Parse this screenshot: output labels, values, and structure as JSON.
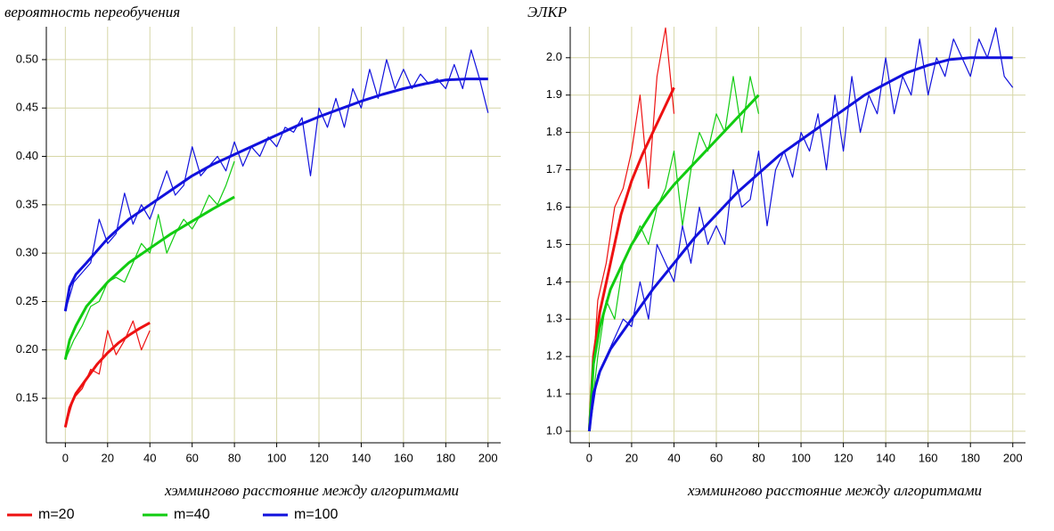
{
  "chart_data": [
    {
      "type": "line",
      "title": "вероятность переобучения",
      "x_label": "хэммингово расстояние между алгоритмами",
      "xlim": [
        -9,
        206
      ],
      "ylim": [
        0.104,
        0.534
      ],
      "grid": true,
      "legend": "bottom-left",
      "xticks": [
        0,
        20,
        40,
        60,
        80,
        100,
        120,
        140,
        160,
        180,
        200
      ],
      "yticks": [
        0.15,
        {
          "value": 0.2,
          "label": "0.20"
        },
        0.25,
        {
          "value": 0.3,
          "label": "0.30"
        },
        0.35,
        {
          "value": 0.4,
          "label": "0.40"
        },
        0.45,
        {
          "value": 0.5,
          "label": "0.50"
        }
      ],
      "series": [
        {
          "name": "m=20",
          "color": "#ee1111",
          "x": [
            0,
            2,
            5,
            10,
            15,
            20,
            25,
            30,
            35,
            40
          ],
          "values": [
            0.12,
            0.14,
            0.155,
            0.17,
            0.185,
            0.197,
            0.207,
            0.215,
            0.222,
            0.228
          ],
          "noisy": {
            "x": [
              0,
              4,
              8,
              12,
              16,
              20,
              24,
              28,
              32,
              36,
              40
            ],
            "values": [
              0.12,
              0.15,
              0.16,
              0.18,
              0.175,
              0.22,
              0.195,
              0.21,
              0.23,
              0.2,
              0.22
            ]
          }
        },
        {
          "name": "m=40",
          "color": "#11cc11",
          "x": [
            0,
            2,
            5,
            10,
            20,
            30,
            40,
            50,
            60,
            70,
            80
          ],
          "values": [
            0.19,
            0.21,
            0.225,
            0.245,
            0.27,
            0.29,
            0.305,
            0.32,
            0.333,
            0.346,
            0.358
          ],
          "noisy": {
            "x": [
              0,
              4,
              8,
              12,
              16,
              20,
              24,
              28,
              32,
              36,
              40,
              44,
              48,
              52,
              56,
              60,
              64,
              68,
              72,
              76,
              80
            ],
            "values": [
              0.19,
              0.21,
              0.225,
              0.245,
              0.25,
              0.27,
              0.275,
              0.27,
              0.29,
              0.31,
              0.3,
              0.34,
              0.3,
              0.32,
              0.335,
              0.325,
              0.34,
              0.36,
              0.35,
              0.37,
              0.395
            ]
          }
        },
        {
          "name": "m=100",
          "color": "#1111dd",
          "x": [
            0,
            2,
            5,
            10,
            20,
            30,
            40,
            50,
            60,
            70,
            80,
            90,
            100,
            110,
            120,
            130,
            140,
            150,
            160,
            170,
            180,
            190,
            200
          ],
          "values": [
            0.24,
            0.265,
            0.278,
            0.29,
            0.315,
            0.335,
            0.35,
            0.365,
            0.38,
            0.392,
            0.402,
            0.412,
            0.422,
            0.432,
            0.441,
            0.449,
            0.457,
            0.464,
            0.47,
            0.475,
            0.479,
            0.48,
            0.48
          ],
          "noisy": {
            "x": [
              0,
              4,
              8,
              12,
              16,
              20,
              24,
              28,
              32,
              36,
              40,
              44,
              48,
              52,
              56,
              60,
              64,
              68,
              72,
              76,
              80,
              84,
              88,
              92,
              96,
              100,
              104,
              108,
              112,
              116,
              120,
              124,
              128,
              132,
              136,
              140,
              144,
              148,
              152,
              156,
              160,
              164,
              168,
              172,
              176,
              180,
              184,
              188,
              192,
              196,
              200
            ],
            "values": [
              0.24,
              0.27,
              0.28,
              0.29,
              0.335,
              0.31,
              0.32,
              0.362,
              0.33,
              0.35,
              0.335,
              0.36,
              0.385,
              0.36,
              0.37,
              0.41,
              0.38,
              0.39,
              0.4,
              0.385,
              0.415,
              0.39,
              0.41,
              0.4,
              0.42,
              0.41,
              0.43,
              0.425,
              0.44,
              0.38,
              0.45,
              0.43,
              0.46,
              0.43,
              0.47,
              0.45,
              0.49,
              0.46,
              0.5,
              0.47,
              0.49,
              0.47,
              0.485,
              0.475,
              0.48,
              0.47,
              0.495,
              0.47,
              0.51,
              0.48,
              0.445
            ]
          }
        }
      ]
    },
    {
      "type": "line",
      "title": "ЭЛКР",
      "x_label": "хэммингово расстояние между алгоритмами",
      "xlim": [
        -9,
        206
      ],
      "ylim": [
        0.969,
        2.083
      ],
      "grid": true,
      "xticks": [
        0,
        20,
        40,
        60,
        80,
        100,
        120,
        140,
        160,
        180,
        200
      ],
      "yticks": [
        {
          "value": 1.0,
          "label": "1.0"
        },
        1.1,
        1.2,
        1.3,
        1.4,
        1.5,
        1.6,
        1.7,
        1.8,
        1.9,
        {
          "value": 2.0,
          "label": "2.0"
        }
      ],
      "series": [
        {
          "color": "#ee1111",
          "x": [
            0,
            2,
            5,
            10,
            15,
            20,
            25,
            30,
            35,
            40
          ],
          "values": [
            1.0,
            1.2,
            1.32,
            1.45,
            1.58,
            1.67,
            1.74,
            1.8,
            1.86,
            1.92
          ],
          "noisy": {
            "x": [
              0,
              4,
              8,
              12,
              16,
              20,
              24,
              28,
              32,
              36,
              40
            ],
            "values": [
              1.0,
              1.35,
              1.45,
              1.6,
              1.65,
              1.75,
              1.9,
              1.65,
              1.95,
              2.08,
              1.85
            ]
          }
        },
        {
          "color": "#11cc11",
          "x": [
            0,
            2,
            5,
            10,
            20,
            30,
            40,
            50,
            60,
            70,
            80
          ],
          "values": [
            1.0,
            1.18,
            1.28,
            1.38,
            1.5,
            1.59,
            1.66,
            1.72,
            1.78,
            1.84,
            1.9
          ],
          "noisy": {
            "x": [
              0,
              4,
              8,
              12,
              16,
              20,
              24,
              28,
              32,
              36,
              40,
              44,
              48,
              52,
              56,
              60,
              64,
              68,
              72,
              76,
              80
            ],
            "values": [
              1.0,
              1.2,
              1.35,
              1.3,
              1.45,
              1.5,
              1.55,
              1.5,
              1.6,
              1.65,
              1.75,
              1.55,
              1.7,
              1.8,
              1.75,
              1.85,
              1.8,
              1.95,
              1.8,
              1.95,
              1.85
            ]
          }
        },
        {
          "color": "#1111dd",
          "x": [
            0,
            2,
            5,
            10,
            20,
            30,
            40,
            50,
            60,
            70,
            80,
            90,
            100,
            110,
            120,
            130,
            140,
            150,
            160,
            170,
            180,
            190,
            200
          ],
          "values": [
            1.0,
            1.1,
            1.16,
            1.22,
            1.3,
            1.38,
            1.45,
            1.52,
            1.58,
            1.64,
            1.69,
            1.74,
            1.78,
            1.82,
            1.86,
            1.9,
            1.93,
            1.96,
            1.98,
            1.995,
            2.0,
            2.0,
            2.0
          ],
          "noisy": {
            "x": [
              0,
              4,
              8,
              12,
              16,
              20,
              24,
              28,
              32,
              36,
              40,
              44,
              48,
              52,
              56,
              60,
              64,
              68,
              72,
              76,
              80,
              84,
              88,
              92,
              96,
              100,
              104,
              108,
              112,
              116,
              120,
              124,
              128,
              132,
              136,
              140,
              144,
              148,
              152,
              156,
              160,
              164,
              168,
              172,
              176,
              180,
              184,
              188,
              192,
              196,
              200
            ],
            "values": [
              1.0,
              1.15,
              1.2,
              1.25,
              1.3,
              1.28,
              1.4,
              1.3,
              1.5,
              1.45,
              1.4,
              1.55,
              1.45,
              1.6,
              1.5,
              1.55,
              1.5,
              1.7,
              1.6,
              1.62,
              1.75,
              1.55,
              1.7,
              1.75,
              1.68,
              1.8,
              1.75,
              1.85,
              1.7,
              1.9,
              1.75,
              1.95,
              1.8,
              1.9,
              1.85,
              2.0,
              1.85,
              1.95,
              1.9,
              2.05,
              1.9,
              2.0,
              1.95,
              2.05,
              2.0,
              1.95,
              2.05,
              2.0,
              2.08,
              1.95,
              1.92
            ]
          }
        }
      ]
    }
  ]
}
